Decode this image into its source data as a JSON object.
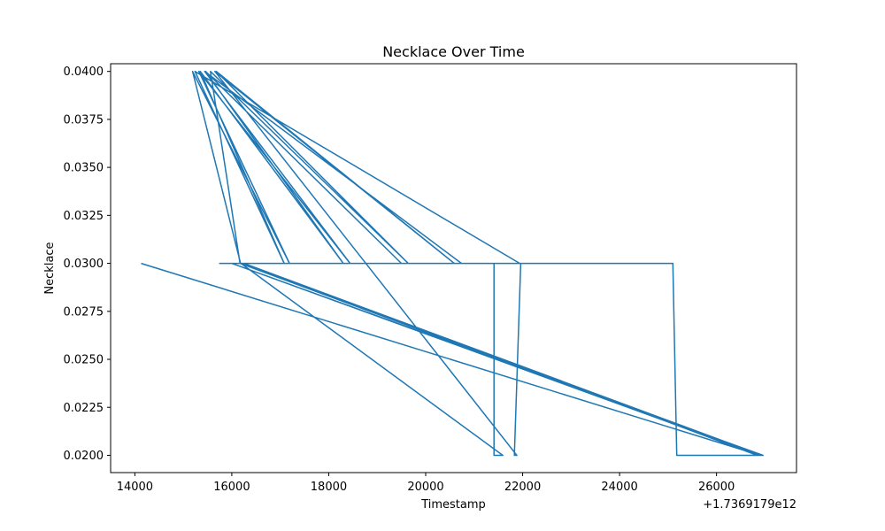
{
  "chart_data": {
    "type": "line",
    "title": "Necklace Over Time",
    "xlabel": "Timestamp",
    "ylabel": "Necklace",
    "x_offset_label": "+1.7369179e12",
    "xlim": [
      13500,
      27650
    ],
    "ylim": [
      0.0191,
      0.0404
    ],
    "x_ticks": [
      {
        "value": 14000,
        "label": "14000"
      },
      {
        "value": 16000,
        "label": "16000"
      },
      {
        "value": 18000,
        "label": "18000"
      },
      {
        "value": 20000,
        "label": "20000"
      },
      {
        "value": 22000,
        "label": "22000"
      },
      {
        "value": 24000,
        "label": "24000"
      },
      {
        "value": 26000,
        "label": "26000"
      }
    ],
    "y_ticks": [
      {
        "value": 0.02,
        "label": "0.0200"
      },
      {
        "value": 0.0225,
        "label": "0.0225"
      },
      {
        "value": 0.025,
        "label": "0.0250"
      },
      {
        "value": 0.0275,
        "label": "0.0275"
      },
      {
        "value": 0.03,
        "label": "0.0300"
      },
      {
        "value": 0.0325,
        "label": "0.0325"
      },
      {
        "value": 0.035,
        "label": "0.0350"
      },
      {
        "value": 0.0375,
        "label": "0.0375"
      },
      {
        "value": 0.04,
        "label": "0.0400"
      }
    ],
    "grid": false,
    "series": [
      {
        "color": "#1f77b4",
        "x": [
          14130,
          26900,
          16000,
          16180,
          15190,
          17190,
          15320,
          18440,
          15440,
          20740,
          16190,
          21590,
          21410,
          21410,
          16220,
          26940,
          16250,
          26840,
          25630,
          25920,
          26960,
          16000,
          15750,
          25100,
          25180,
          25540,
          26880,
          16170,
          15560,
          19640,
          15680,
          20590,
          15650,
          21880,
          21830,
          21960,
          21940,
          15240,
          17080,
          15350,
          18300,
          15460,
          19500
        ],
        "y": [
          0.03,
          0.02,
          0.03,
          0.03,
          0.04,
          0.03,
          0.04,
          0.03,
          0.04,
          0.03,
          0.03,
          0.02,
          0.02,
          0.03,
          0.03,
          0.02,
          0.03,
          0.02,
          0.02,
          0.02,
          0.02,
          0.03,
          0.03,
          0.03,
          0.02,
          0.02,
          0.02,
          0.03,
          0.04,
          0.03,
          0.04,
          0.03,
          0.04,
          0.02,
          0.02,
          0.03,
          0.03,
          0.04,
          0.03,
          0.04,
          0.03,
          0.04,
          0.03
        ]
      }
    ]
  }
}
